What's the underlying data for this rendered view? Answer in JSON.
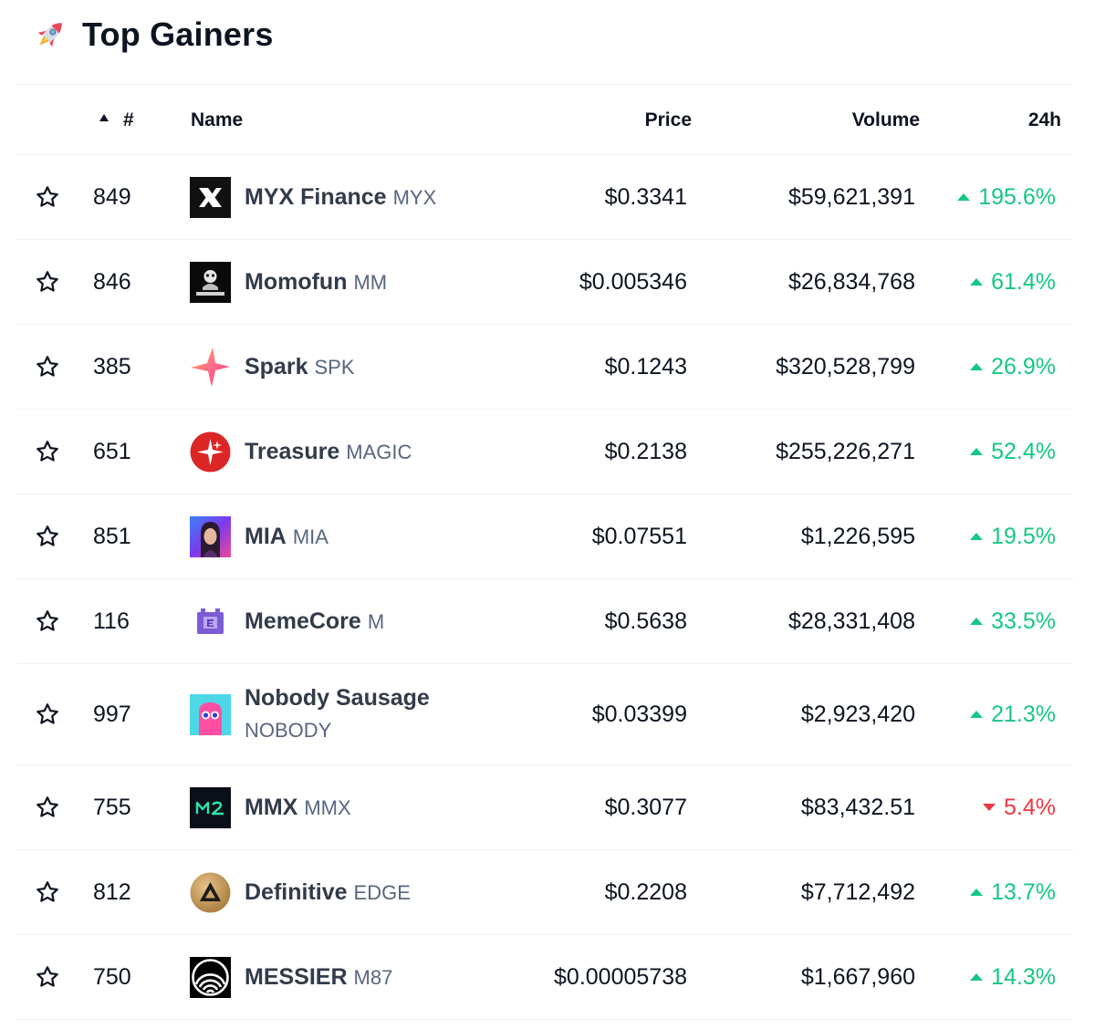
{
  "header": {
    "title": "Top Gainers",
    "icon": "rocket-icon"
  },
  "columns": {
    "rank": "#",
    "name": "Name",
    "price": "Price",
    "volume": "Volume",
    "change": "24h"
  },
  "colors": {
    "up": "#16c784",
    "down": "#ea3943",
    "text": "#0d1421",
    "symbol": "#58667e"
  },
  "rows": [
    {
      "rank": "849",
      "name": "MYX Finance",
      "symbol": "MYX",
      "price": "$0.3341",
      "volume": "$59,621,391",
      "change": "195.6%",
      "direction": "up",
      "logo": "myx-logo"
    },
    {
      "rank": "846",
      "name": "Momofun",
      "symbol": "MM",
      "price": "$0.005346",
      "volume": "$26,834,768",
      "change": "61.4%",
      "direction": "up",
      "logo": "momofun-logo"
    },
    {
      "rank": "385",
      "name": "Spark",
      "symbol": "SPK",
      "price": "$0.1243",
      "volume": "$320,528,799",
      "change": "26.9%",
      "direction": "up",
      "logo": "spark-logo"
    },
    {
      "rank": "651",
      "name": "Treasure",
      "symbol": "MAGIC",
      "price": "$0.2138",
      "volume": "$255,226,271",
      "change": "52.4%",
      "direction": "up",
      "logo": "treasure-logo"
    },
    {
      "rank": "851",
      "name": "MIA",
      "symbol": "MIA",
      "price": "$0.07551",
      "volume": "$1,226,595",
      "change": "19.5%",
      "direction": "up",
      "logo": "mia-logo"
    },
    {
      "rank": "116",
      "name": "MemeCore",
      "symbol": "M",
      "price": "$0.5638",
      "volume": "$28,331,408",
      "change": "33.5%",
      "direction": "up",
      "logo": "memecore-logo"
    },
    {
      "rank": "997",
      "name": "Nobody Sausage",
      "symbol": "NOBODY",
      "price": "$0.03399",
      "volume": "$2,923,420",
      "change": "21.3%",
      "direction": "up",
      "logo": "nobody-logo"
    },
    {
      "rank": "755",
      "name": "MMX",
      "symbol": "MMX",
      "price": "$0.3077",
      "volume": "$83,432.51",
      "change": "5.4%",
      "direction": "down",
      "logo": "mmx-logo"
    },
    {
      "rank": "812",
      "name": "Definitive",
      "symbol": "EDGE",
      "price": "$0.2208",
      "volume": "$7,712,492",
      "change": "13.7%",
      "direction": "up",
      "logo": "definitive-logo"
    },
    {
      "rank": "750",
      "name": "MESSIER",
      "symbol": "M87",
      "price": "$0.00005738",
      "volume": "$1,667,960",
      "change": "14.3%",
      "direction": "up",
      "logo": "messier-logo"
    }
  ]
}
